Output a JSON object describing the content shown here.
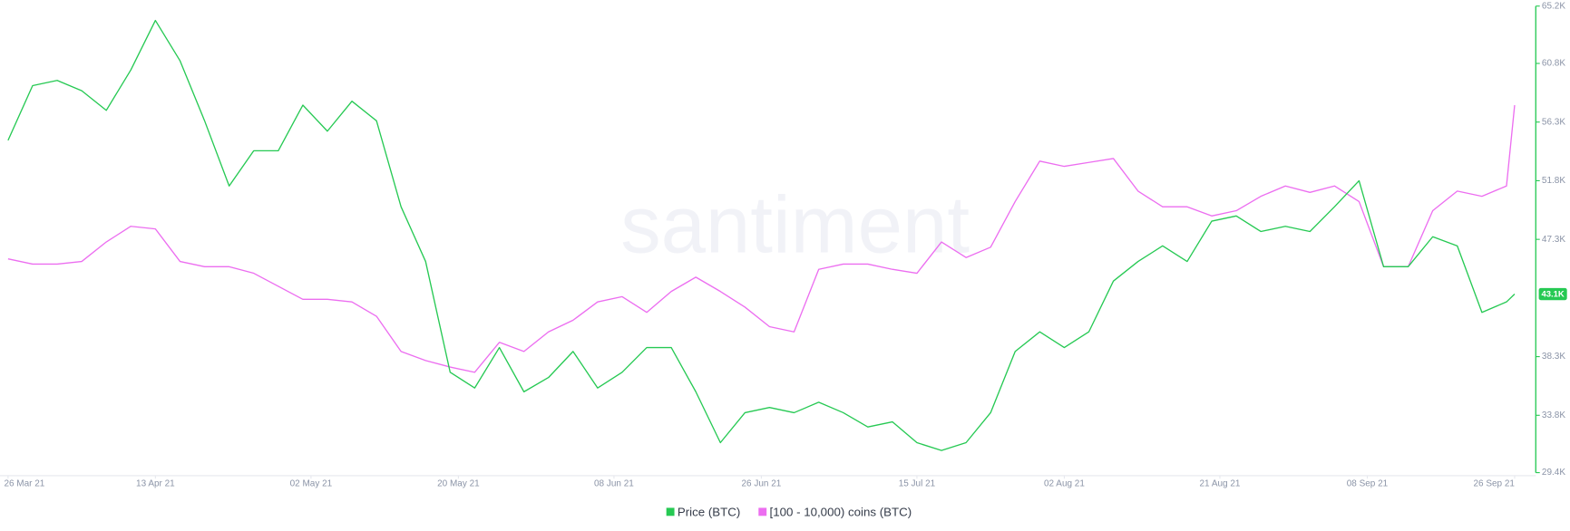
{
  "chart_data": {
    "type": "line",
    "watermark": "santiment",
    "x": [
      "2021-03-26",
      "2021-03-29",
      "2021-04-01",
      "2021-04-04",
      "2021-04-07",
      "2021-04-10",
      "2021-04-13",
      "2021-04-16",
      "2021-04-19",
      "2021-04-22",
      "2021-04-25",
      "2021-04-28",
      "2021-05-01",
      "2021-05-04",
      "2021-05-07",
      "2021-05-10",
      "2021-05-13",
      "2021-05-16",
      "2021-05-19",
      "2021-05-22",
      "2021-05-25",
      "2021-05-28",
      "2021-05-31",
      "2021-06-03",
      "2021-06-06",
      "2021-06-09",
      "2021-06-12",
      "2021-06-15",
      "2021-06-18",
      "2021-06-21",
      "2021-06-24",
      "2021-06-27",
      "2021-06-30",
      "2021-07-03",
      "2021-07-06",
      "2021-07-09",
      "2021-07-12",
      "2021-07-15",
      "2021-07-18",
      "2021-07-21",
      "2021-07-24",
      "2021-07-27",
      "2021-07-30",
      "2021-08-02",
      "2021-08-05",
      "2021-08-08",
      "2021-08-11",
      "2021-08-14",
      "2021-08-17",
      "2021-08-20",
      "2021-08-23",
      "2021-08-26",
      "2021-08-29",
      "2021-09-01",
      "2021-09-04",
      "2021-09-07",
      "2021-09-10",
      "2021-09-13",
      "2021-09-16",
      "2021-09-19",
      "2021-09-22",
      "2021-09-25",
      "2021-09-26"
    ],
    "series": [
      {
        "name": "Price (BTC)",
        "color": "#26c953",
        "values": [
          54900,
          59100,
          59500,
          58700,
          57200,
          60300,
          64100,
          61000,
          56400,
          51400,
          54100,
          54100,
          57600,
          55600,
          57900,
          56400,
          49800,
          45600,
          37100,
          35900,
          39000,
          35600,
          36700,
          38700,
          35900,
          37100,
          39000,
          39000,
          35600,
          31700,
          34000,
          34400,
          34000,
          34800,
          34000,
          32900,
          33300,
          31700,
          31100,
          31700,
          34000,
          38700,
          40200,
          39000,
          40200,
          44100,
          45600,
          46800,
          45600,
          48700,
          49100,
          47900,
          48300,
          47900,
          49800,
          51800,
          45200,
          45200,
          47500,
          46800,
          41700,
          42500,
          43100
        ],
        "last_label": "43.1K"
      },
      {
        "name": "[100 - 10,000) coins (BTC)",
        "color": "#ec6ef0",
        "values": [
          45800,
          45400,
          45400,
          45600,
          47100,
          48300,
          48100,
          45600,
          45200,
          45200,
          44700,
          43700,
          42700,
          42700,
          42500,
          41400,
          38700,
          38000,
          37500,
          37100,
          39400,
          38700,
          40200,
          41100,
          42500,
          42900,
          41700,
          43300,
          44400,
          43300,
          42100,
          40600,
          40200,
          45000,
          45400,
          45400,
          45000,
          44700,
          47100,
          45900,
          46700,
          50200,
          53300,
          52900,
          53200,
          53500,
          51000,
          49800,
          49800,
          49100,
          49500,
          50600,
          51400,
          50900,
          51400,
          50200,
          45200,
          45200,
          49500,
          51000,
          50600,
          51400,
          57600
        ]
      }
    ],
    "xlim": [
      "2021-03-26",
      "2021-09-26"
    ],
    "xticks": [
      {
        "value": "2021-03-26",
        "label": "26 Mar 21"
      },
      {
        "value": "2021-04-13",
        "label": "13 Apr 21"
      },
      {
        "value": "2021-05-02",
        "label": "02 May 21"
      },
      {
        "value": "2021-05-20",
        "label": "20 May 21"
      },
      {
        "value": "2021-06-08",
        "label": "08 Jun 21"
      },
      {
        "value": "2021-06-26",
        "label": "26 Jun 21"
      },
      {
        "value": "2021-07-15",
        "label": "15 Jul 21"
      },
      {
        "value": "2021-08-02",
        "label": "02 Aug 21"
      },
      {
        "value": "2021-08-21",
        "label": "21 Aug 21"
      },
      {
        "value": "2021-09-08",
        "label": "08 Sep 21"
      },
      {
        "value": "2021-09-26",
        "label": "26 Sep 21"
      }
    ],
    "ylim": [
      29400,
      65200
    ],
    "yticks": [
      {
        "value": 29400,
        "label": "29.4K"
      },
      {
        "value": 33800,
        "label": "33.8K"
      },
      {
        "value": 38300,
        "label": "38.3K"
      },
      {
        "value": 47300,
        "label": "47.3K"
      },
      {
        "value": 51800,
        "label": "51.8K"
      },
      {
        "value": 56300,
        "label": "56.3K"
      },
      {
        "value": 60800,
        "label": "60.8K"
      },
      {
        "value": 65200,
        "label": "65.2K"
      }
    ],
    "axis_color": "#26c953",
    "legend": "bottom"
  }
}
